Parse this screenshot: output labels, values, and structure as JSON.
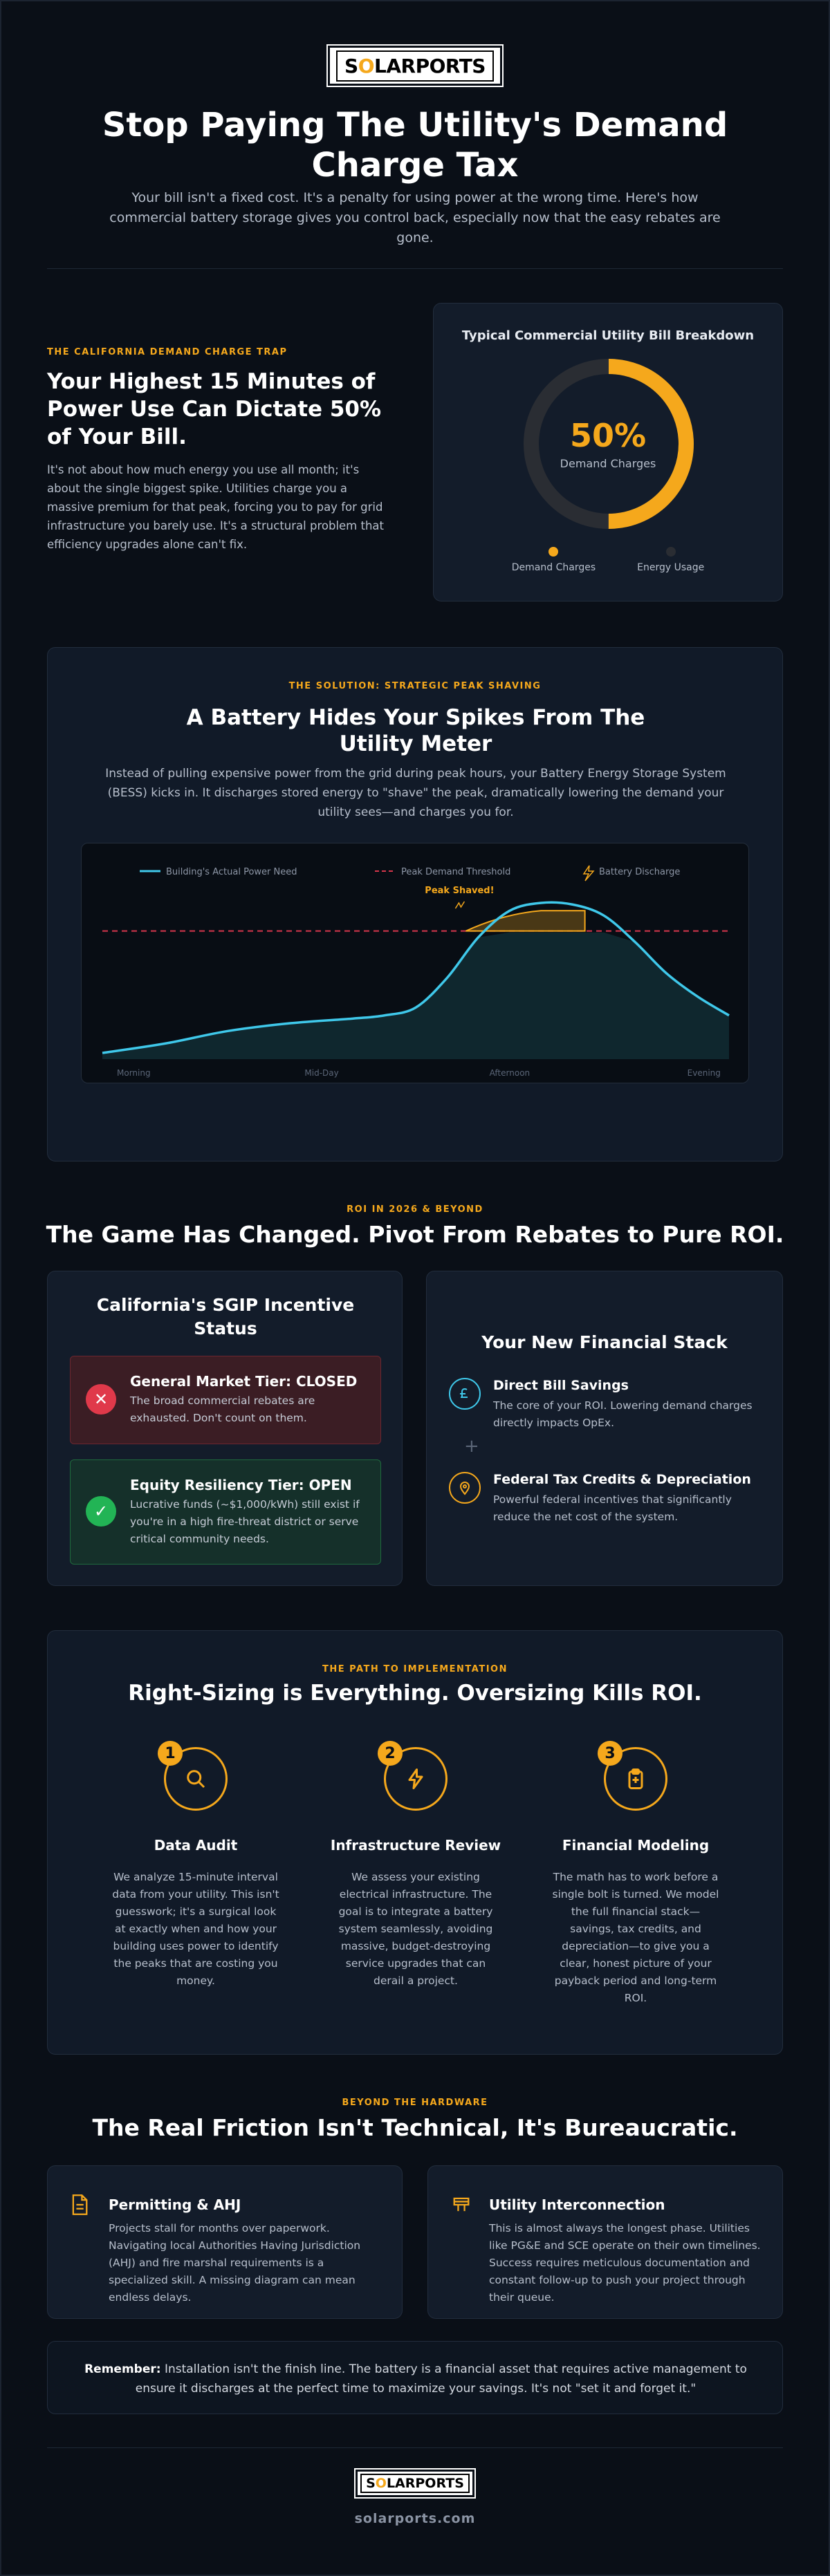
{
  "brand": {
    "logo_pre": "S",
    "logo_o": "O",
    "logo_post": "LARPORTS",
    "url": "solarports.com"
  },
  "hero": {
    "title": "Stop Paying The Utility's Demand Charge Tax",
    "subtitle": "Your bill isn't a fixed cost. It's a penalty for using power at the wrong time. Here's how commercial battery storage gives you control back, especially now that the easy rebates are gone."
  },
  "trap": {
    "kicker": "THE CALIFORNIA DEMAND CHARGE TRAP",
    "title": "Your Highest 15 Minutes of Power Use Can Dictate 50% of Your Bill.",
    "body": "It's not about how much energy you use all month; it's about the single biggest spike. Utilities charge you a massive premium for that peak, forcing you to pay for grid infrastructure you barely use. It's a structural problem that efficiency upgrades alone can't fix.",
    "donut": {
      "title": "Typical Commercial Utility Bill Breakdown",
      "value": "50%",
      "value_label": "Demand Charges",
      "demand_fraction": 0.5,
      "legend": [
        "Demand Charges",
        "Energy Usage"
      ],
      "colors": {
        "demand": "#f5a81c",
        "energy": "#2a2d33"
      }
    }
  },
  "solution": {
    "kicker": "THE SOLUTION: STRATEGIC PEAK SHAVING",
    "title": "A Battery Hides Your Spikes From The Utility Meter",
    "body": "Instead of pulling expensive power from the grid during peak hours, your Battery Energy Storage System (BESS) kicks in. It discharges stored energy to \"shave\" the peak, dramatically lowering the demand your utility sees—and charges you for."
  },
  "chart_data": {
    "type": "line",
    "title": "",
    "legend": [
      "Building's Actual Power Need",
      "Peak Demand Threshold",
      "Battery Discharge"
    ],
    "annotation": "Peak Shaved!",
    "categories": [
      "Morning",
      "Mid-Day",
      "Afternoon",
      "Evening"
    ],
    "x": [
      0,
      0.1,
      0.2,
      0.3,
      0.4,
      0.45,
      0.5,
      0.55,
      0.6,
      0.65,
      0.7,
      0.75,
      0.8,
      0.85,
      0.9,
      0.95,
      1.0
    ],
    "series": [
      {
        "name": "Building's Actual Power Need",
        "values": [
          0.04,
          0.1,
          0.18,
          0.23,
          0.26,
          0.28,
          0.33,
          0.52,
          0.78,
          0.95,
          1.0,
          0.99,
          0.92,
          0.75,
          0.55,
          0.4,
          0.28
        ]
      },
      {
        "name": "Peak Demand Threshold",
        "value": 0.82
      }
    ],
    "colors": {
      "need": "#3fc8ea",
      "threshold": "#d6364c",
      "discharge": "#f5a81c"
    }
  },
  "roi": {
    "kicker": "ROI IN 2026 & BEYOND",
    "title": "The Game Has Changed. Pivot From Rebates to Pure ROI.",
    "sgip": {
      "title": "California's SGIP Incentive Status",
      "closed_title": "General Market Tier: CLOSED",
      "closed_body": "The broad commercial rebates are exhausted. Don't count on them.",
      "open_title": "Equity Resiliency Tier: OPEN",
      "open_body": "Lucrative funds (~$1,000/kWh) still exist if you're in a high fire-threat district or serve critical community needs."
    },
    "stack": {
      "title": "Your New Financial Stack",
      "item1_title": "Direct Bill Savings",
      "item1_body": "The core of your ROI. Lowering demand charges directly impacts OpEx.",
      "plus": "+",
      "item2_title": "Federal Tax Credits & Depreciation",
      "item2_body": "Powerful federal incentives that significantly reduce the net cost of the system."
    }
  },
  "path": {
    "kicker": "THE PATH TO IMPLEMENTATION",
    "title": "Right-Sizing is Everything. Oversizing Kills ROI.",
    "steps": [
      {
        "num": "1",
        "title": "Data Audit",
        "body": "We analyze 15-minute interval data from your utility. This isn't guesswork; it's a surgical look at exactly when and how your building uses power to identify the peaks that are costing you money."
      },
      {
        "num": "2",
        "title": "Infrastructure Review",
        "body": "We assess your existing electrical infrastructure. The goal is to integrate a battery system seamlessly, avoiding massive, budget-destroying service upgrades that can derail a project."
      },
      {
        "num": "3",
        "title": "Financial Modeling",
        "body": "The math has to work before a single bolt is turned. We model the full financial stack—savings, tax credits, and depreciation—to give you a clear, honest picture of your payback period and long-term ROI."
      }
    ]
  },
  "friction": {
    "kicker": "BEYOND THE HARDWARE",
    "title": "The Real Friction Isn't Technical, It's Bureaucratic.",
    "permit_title": "Permitting & AHJ",
    "permit_body": "Projects stall for months over paperwork. Navigating local Authorities Having Jurisdiction (AHJ) and fire marshal requirements is a specialized skill. A missing diagram can mean endless delays.",
    "inter_title": "Utility Interconnection",
    "inter_body": "This is almost always the longest phase. Utilities like PG&E and SCE operate on their own timelines. Success requires meticulous documentation and constant follow-up to push your project through their queue.",
    "note_label": "Remember:",
    "note_body": " Installation isn't the finish line. The battery is a financial asset that requires active management to ensure it discharges at the perfect time to maximize your savings. It's not \"set it and forget it.\""
  }
}
